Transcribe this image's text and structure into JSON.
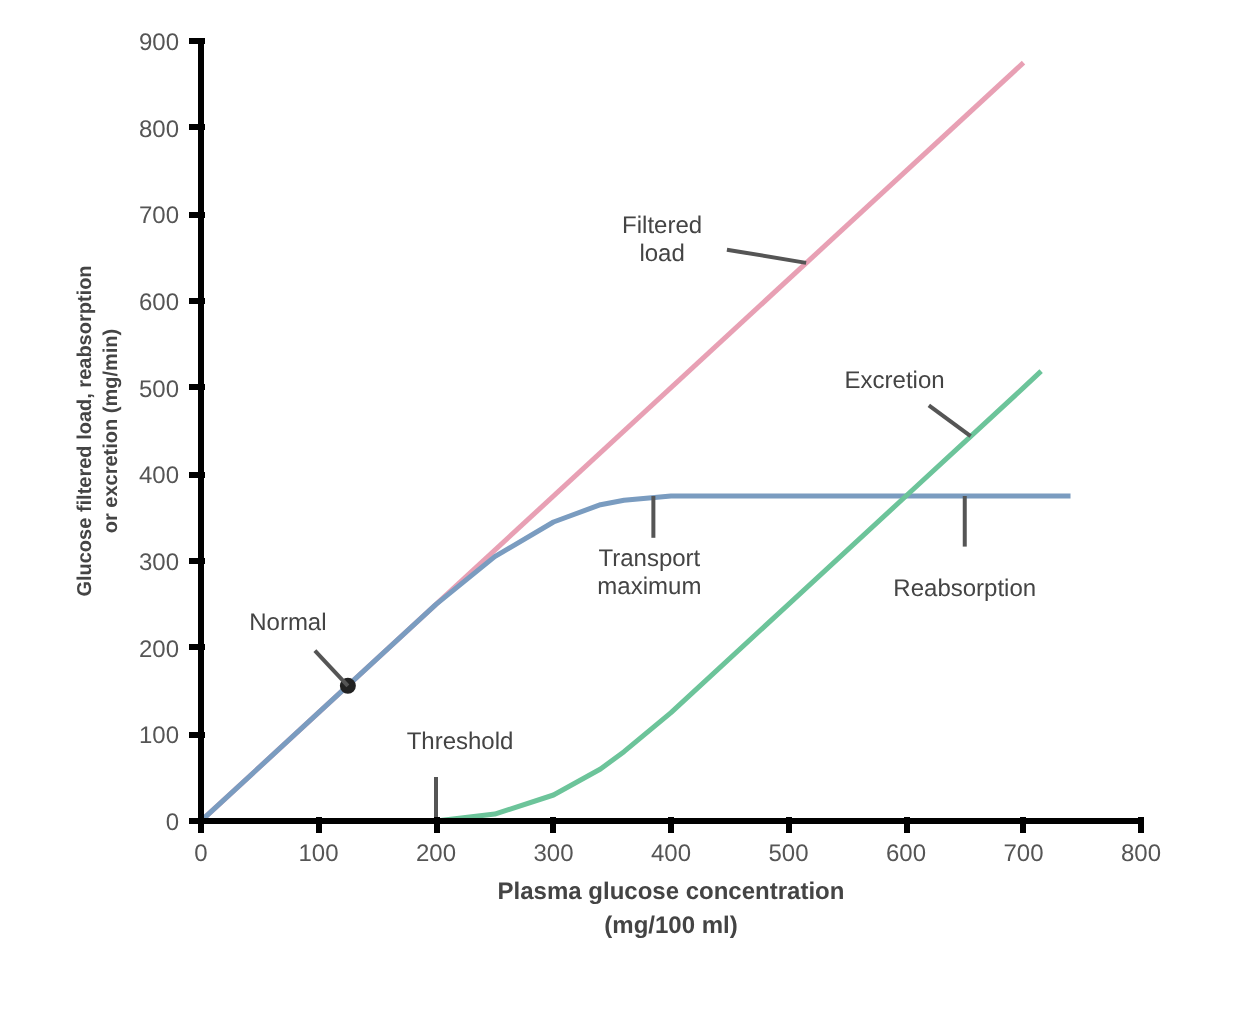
{
  "chart_data": {
    "type": "line",
    "xlabel": "Plasma glucose concentration\n(mg/100 ml)",
    "ylabel": "Glucose filtered load, reabsorption\nor excretion (mg/min)",
    "xlim": [
      0,
      800
    ],
    "ylim": [
      0,
      900
    ],
    "xticks": [
      0,
      100,
      200,
      300,
      400,
      500,
      600,
      700,
      800
    ],
    "yticks": [
      0,
      100,
      200,
      300,
      400,
      500,
      600,
      700,
      800,
      900
    ],
    "grid": false,
    "series": [
      {
        "color": "#e8a0b4",
        "x": [
          0,
          700
        ],
        "values": [
          0,
          875
        ]
      },
      {
        "color": "#7a9cc0",
        "x": [
          0,
          100,
          200,
          250,
          300,
          340,
          360,
          400,
          500,
          600,
          700,
          740
        ],
        "values": [
          0,
          125,
          250,
          305,
          345,
          365,
          370,
          375,
          375,
          375,
          375,
          375
        ]
      },
      {
        "color": "#6cc49a",
        "x": [
          200,
          250,
          300,
          340,
          360,
          400,
          500,
          600,
          700,
          715
        ],
        "values": [
          0,
          8,
          30,
          60,
          80,
          125,
          250,
          375,
          500,
          519
        ]
      },
      {
        "type": "scatter",
        "marker": "circle",
        "color": "#222222",
        "x": [
          125
        ],
        "values": [
          156
        ]
      }
    ],
    "annotations": [
      {
        "text": "Normal",
        "x": 125,
        "y": 156
      },
      {
        "text": "Threshold",
        "x": 200,
        "y": 0
      },
      {
        "text": "Transport\nmaximum",
        "x": 385,
        "y": 375
      },
      {
        "text": "Reabsorption",
        "x": 650,
        "y": 375
      },
      {
        "text": "Filtered\nload",
        "x": 515,
        "y": 644
      },
      {
        "text": "Excretion",
        "x": 655,
        "y": 444
      }
    ]
  }
}
